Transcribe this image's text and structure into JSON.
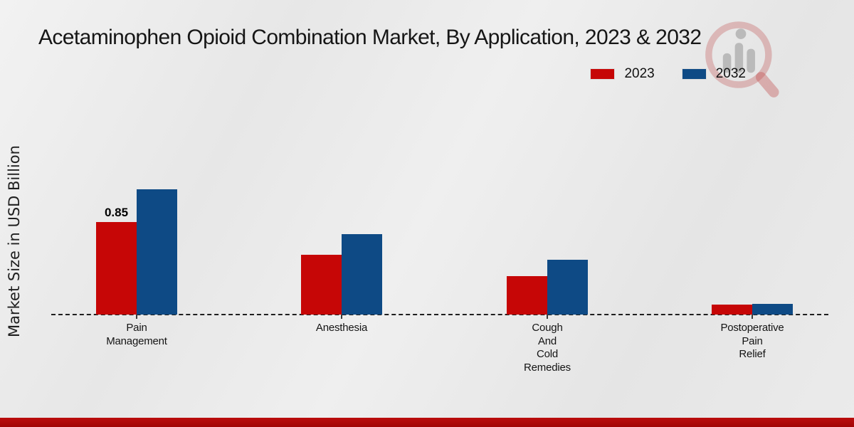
{
  "title": "Acetaminophen Opioid Combination Market, By Application, 2023 & 2032",
  "ylabel": "Market Size in USD Billion",
  "legend": [
    {
      "label": "2023",
      "color": "#c60606"
    },
    {
      "label": "2032",
      "color": "#0e4a85"
    }
  ],
  "footer": {
    "accent_color": "#b50b0b"
  },
  "watermark_icon": "magnifier-bar-chart-logo",
  "chart_data": {
    "type": "bar",
    "title": "Acetaminophen Opioid Combination Market, By Application, 2023 & 2032",
    "xlabel": "",
    "ylabel": "Market Size in USD Billion",
    "ylim": [
      0,
      1.3
    ],
    "grid": false,
    "legend_position": "top-right",
    "baseline_style": "dashed",
    "categories": [
      "Pain Management",
      "Anesthesia",
      "Cough And Cold Remedies",
      "Postoperative Pain Relief"
    ],
    "category_label_lines": [
      [
        "Pain",
        "Management"
      ],
      [
        "Anesthesia"
      ],
      [
        "Cough",
        "And",
        "Cold",
        "Remedies"
      ],
      [
        "Postoperative",
        "Pain",
        "Relief"
      ]
    ],
    "series": [
      {
        "name": "2023",
        "color": "#c60606",
        "values": [
          0.85,
          0.55,
          0.35,
          0.09
        ]
      },
      {
        "name": "2032",
        "color": "#0e4a85",
        "values": [
          1.15,
          0.74,
          0.5,
          0.1
        ]
      }
    ],
    "bar_labels": {
      "2023": [
        "0.85",
        "",
        "",
        ""
      ],
      "2032": [
        "",
        "",
        "",
        ""
      ]
    }
  }
}
